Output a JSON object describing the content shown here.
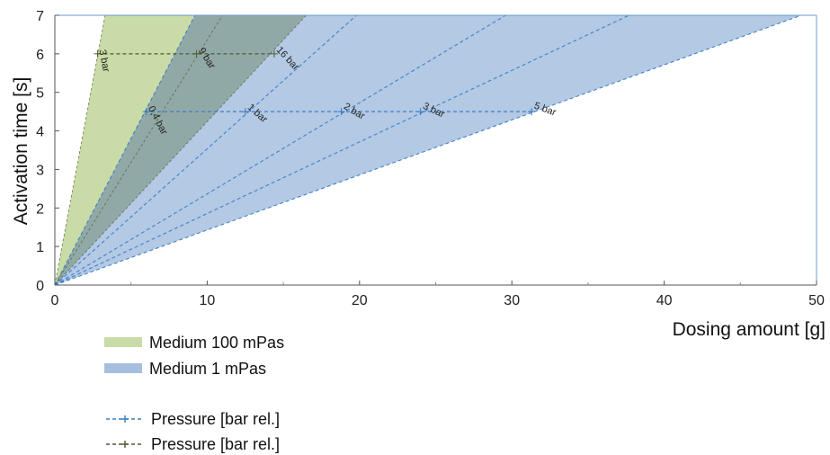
{
  "chart_data": {
    "type": "area",
    "xlabel": "Dosing amount [g]",
    "ylabel": "Activation time [s]",
    "xlim": [
      0,
      50
    ],
    "ylim": [
      0,
      7
    ],
    "xticks": [
      0,
      10,
      20,
      30,
      40,
      50
    ],
    "yticks": [
      0,
      1,
      2,
      3,
      4,
      5,
      6,
      7
    ],
    "colors": {
      "green_fill": "#c9dba6",
      "overlap_fill": "#8fa8a3",
      "blue_fill": "#a6bfdf",
      "blue_line": "#3c7dc4",
      "green_line": "#4d5a32"
    },
    "regions": [
      {
        "name": "Medium 100 mPas",
        "color": "#c9dba6",
        "x_at_7s": [
          3.3,
          16.5
        ]
      },
      {
        "name": "Medium 1 mPas",
        "color": "#a6bfdf",
        "x_at_7s": [
          9.2,
          49.0
        ]
      }
    ],
    "pressure_lines": [
      {
        "group": "Medium 100 mPas",
        "label": "3 bar",
        "x_at_7s": 3.3,
        "label_point": [
          2.8,
          6.0
        ]
      },
      {
        "group": "Medium 100 mPas",
        "label": "9 bar",
        "x_at_7s": 11.0,
        "label_point": [
          9.3,
          6.0
        ]
      },
      {
        "group": "Medium 100 mPas",
        "label": "16 bar",
        "x_at_7s": 16.5,
        "label_point": [
          14.4,
          6.0
        ]
      },
      {
        "group": "Medium 1 mPas",
        "label": "0,4 bar",
        "x_at_7s": 9.2,
        "label_point": [
          6.0,
          4.5
        ]
      },
      {
        "group": "Medium 1 mPas",
        "label": "1 bar",
        "x_at_7s": 19.8,
        "label_point": [
          12.5,
          4.5
        ]
      },
      {
        "group": "Medium 1 mPas",
        "label": "2 bar",
        "x_at_7s": 29.6,
        "label_point": [
          18.8,
          4.5
        ]
      },
      {
        "group": "Medium 1 mPas",
        "label": "3 bar",
        "x_at_7s": 37.7,
        "label_point": [
          24.0,
          4.5
        ]
      },
      {
        "group": "Medium 1 mPas",
        "label": "5 bar",
        "x_at_7s": 49.0,
        "label_point": [
          31.3,
          4.5
        ]
      }
    ],
    "reference_lines": [
      {
        "group": "Medium 100 mPas",
        "y": 6.0,
        "x_range": [
          2.8,
          14.4
        ]
      },
      {
        "group": "Medium 1 mPas",
        "y": 4.5,
        "x_range": [
          5.9,
          31.3
        ]
      }
    ],
    "legend": {
      "placement": "bottom-left",
      "items": [
        {
          "label": "Medium 100 mPas",
          "kind": "patch",
          "color": "#c9dba6"
        },
        {
          "label": "Medium 1 mPas",
          "kind": "patch",
          "color": "#a6bfdf"
        },
        {
          "label": "Pressure [bar rel.]",
          "kind": "line",
          "color": "#3c7dc4"
        },
        {
          "label": "Pressure [bar rel.]",
          "kind": "line",
          "color": "#4d5a32"
        }
      ]
    }
  }
}
